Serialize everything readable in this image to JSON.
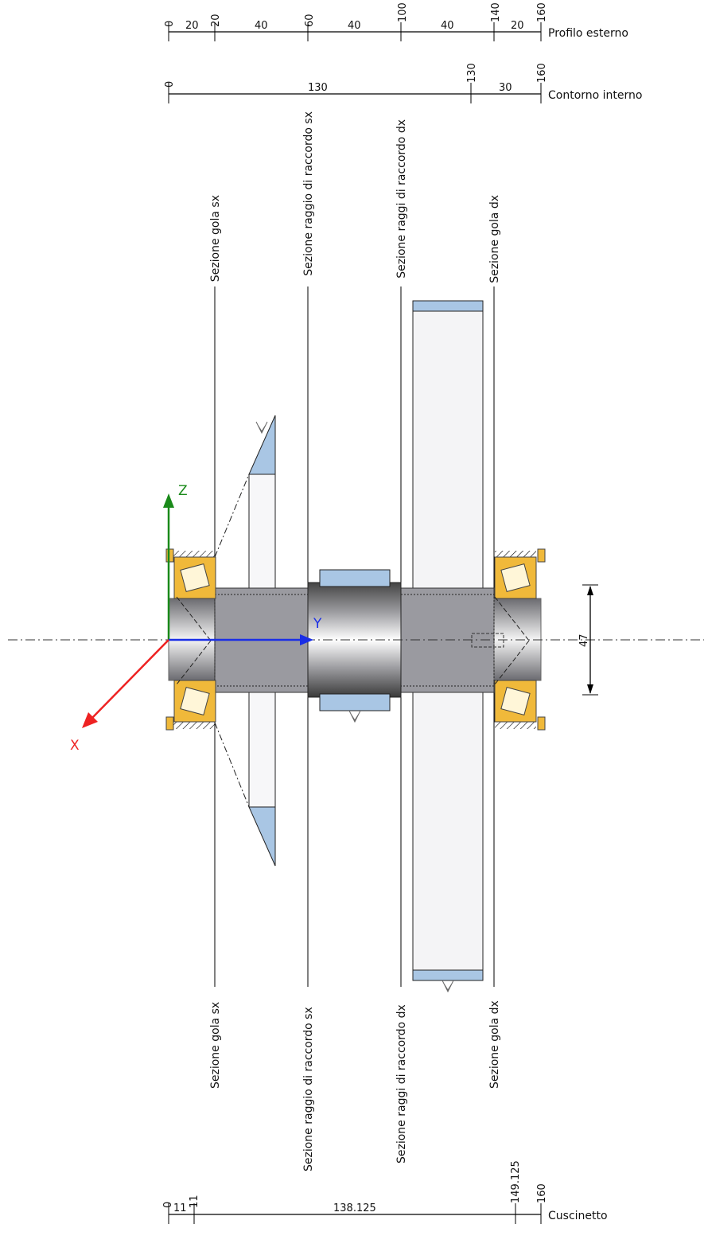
{
  "dimension_rows": {
    "outer": {
      "label": "Profilo esterno",
      "marks": [
        "0",
        "20",
        "60",
        "100",
        "140",
        "160"
      ],
      "segments": [
        "20",
        "40",
        "40",
        "40",
        "20"
      ]
    },
    "inner": {
      "label": "Contorno interno",
      "marks": [
        "0",
        "130",
        "160"
      ],
      "segments": [
        "130",
        "30"
      ]
    },
    "bearing": {
      "label": "Cuscinetto",
      "marks": [
        "0",
        "11",
        "149.125",
        "160"
      ],
      "segments": [
        "11",
        "138.125"
      ]
    }
  },
  "sections": {
    "gola_sx": "Sezione gola sx",
    "raggio_sx": "Sezione raggio di raccordo sx",
    "raggi_dx_top": "Sezione raggi di raccordo dx",
    "raggi_dx_bottom": "Sezione raggi di raccordo dx",
    "gola_dx": "Sezione gola dx"
  },
  "axes": {
    "z": "Z",
    "y": "Y",
    "x": "X"
  },
  "diameter_dim": "47",
  "colors": {
    "shaft": "#9a9aa0",
    "bearing": "#f0b93a",
    "gear_blue": "#a9c6e4",
    "axis_x": "#ee2222",
    "axis_y": "#1a2ee6",
    "axis_z": "#1a8a1a"
  }
}
